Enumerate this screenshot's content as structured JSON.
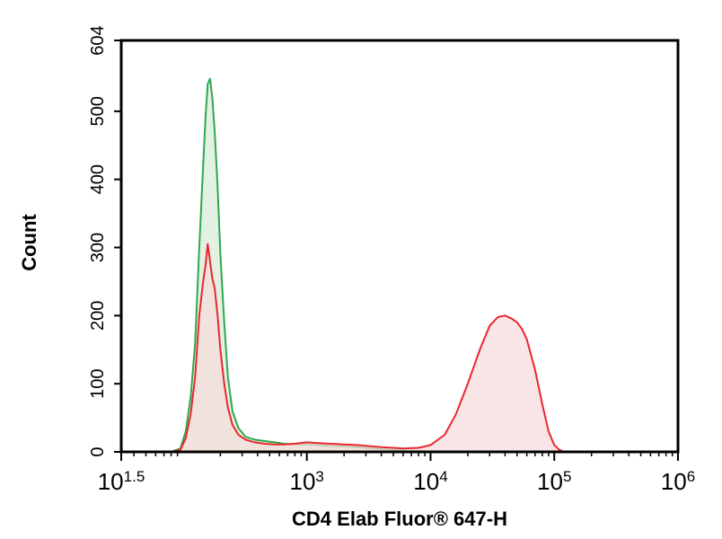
{
  "chart_data": {
    "type": "area",
    "xlabel": "CD4 Elab Fluor® 647-H",
    "ylabel": "Count",
    "x_scale": "log10",
    "xlim": [
      31.6,
      1000000
    ],
    "ylim": [
      0,
      604
    ],
    "y_ticks": [
      0,
      100,
      200,
      300,
      400,
      500,
      604
    ],
    "x_ticks": [
      {
        "value": 31.6,
        "base": "10",
        "exp": "1.5"
      },
      {
        "value": 1000,
        "base": "10",
        "exp": "3"
      },
      {
        "value": 10000,
        "base": "10",
        "exp": "4"
      },
      {
        "value": 100000,
        "base": "10",
        "exp": "5"
      },
      {
        "value": 1000000,
        "base": "10",
        "exp": "6"
      }
    ],
    "grid": false,
    "legend": "none",
    "series": [
      {
        "color": "#2fa84f",
        "fill": "#d9ecd8",
        "x": [
          80,
          95,
          105,
          115,
          125,
          135,
          145,
          152,
          158,
          165,
          172,
          180,
          190,
          200,
          215,
          230,
          250,
          280,
          320,
          380,
          450,
          550,
          650,
          800,
          1000,
          1200,
          1500,
          2000,
          2500,
          3000,
          4000,
          5000,
          6000,
          8000,
          10000,
          15000
        ],
        "y": [
          0,
          5,
          30,
          80,
          160,
          300,
          420,
          495,
          540,
          548,
          520,
          470,
          390,
          290,
          190,
          110,
          60,
          35,
          22,
          18,
          16,
          14,
          12,
          11,
          11,
          10,
          9,
          8,
          7,
          6,
          4,
          3,
          2,
          1,
          0,
          0
        ]
      },
      {
        "color": "#e8282e",
        "fill": "#f7dcdc",
        "x": [
          80,
          95,
          105,
          115,
          125,
          135,
          145,
          152,
          158,
          165,
          172,
          180,
          190,
          200,
          215,
          230,
          250,
          280,
          320,
          380,
          450,
          550,
          650,
          800,
          1000,
          1200,
          1500,
          2000,
          2500,
          3000,
          4000,
          5000,
          6000,
          8000,
          10000,
          13000,
          16000,
          20000,
          25000,
          30000,
          35000,
          40000,
          45000,
          50000,
          55000,
          60000,
          70000,
          80000,
          90000,
          100000,
          110000,
          120000
        ],
        "y": [
          0,
          3,
          20,
          55,
          110,
          200,
          250,
          275,
          305,
          280,
          255,
          240,
          200,
          150,
          100,
          65,
          40,
          25,
          18,
          14,
          12,
          11,
          11,
          12,
          14,
          13,
          12,
          11,
          10,
          9,
          7,
          6,
          5,
          6,
          10,
          25,
          55,
          100,
          150,
          185,
          198,
          200,
          196,
          190,
          180,
          165,
          120,
          70,
          30,
          10,
          3,
          0
        ]
      }
    ]
  }
}
